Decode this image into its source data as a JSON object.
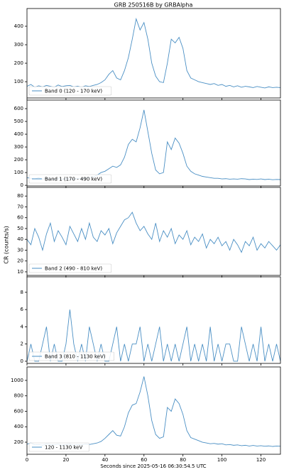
{
  "title": "GRB 250516B by GRBAlpha",
  "x_label": "Seconds since 2025-05-16 06:30:54.5 UTC",
  "y_label": "CR (counts/s)",
  "chart_data": [
    {
      "type": "line",
      "legend": "lower left",
      "xlim": [
        0,
        130
      ],
      "xticks": [
        0,
        20,
        40,
        60,
        80,
        100,
        120
      ],
      "ylim": [
        12,
        496
      ],
      "yticks": [
        100,
        200,
        300,
        400
      ],
      "x": [
        0,
        2,
        4,
        6,
        8,
        10,
        12,
        14,
        16,
        18,
        20,
        22,
        24,
        26,
        28,
        30,
        32,
        34,
        36,
        38,
        40,
        42,
        44,
        46,
        48,
        50,
        52,
        54,
        56,
        58,
        60,
        62,
        64,
        66,
        68,
        70,
        72,
        74,
        76,
        78,
        80,
        82,
        84,
        86,
        88,
        90,
        92,
        94,
        96,
        98,
        100,
        102,
        104,
        106,
        108,
        110,
        112,
        114,
        116,
        118,
        120,
        122,
        124,
        126,
        128,
        130
      ],
      "series": [
        {
          "name": "Band 0 (120 - 170 keV)",
          "color": "#4a8fc4",
          "values": [
            75,
            85,
            70,
            78,
            72,
            80,
            75,
            70,
            82,
            74,
            78,
            80,
            72,
            76,
            70,
            78,
            74,
            80,
            85,
            95,
            110,
            140,
            160,
            120,
            110,
            160,
            230,
            330,
            440,
            380,
            420,
            330,
            200,
            130,
            100,
            95,
            200,
            330,
            310,
            340,
            280,
            160,
            120,
            110,
            100,
            95,
            90,
            85,
            90,
            80,
            85,
            75,
            80,
            72,
            78,
            70,
            75,
            72,
            68,
            74,
            70,
            66,
            72,
            68,
            70,
            68
          ]
        }
      ]
    },
    {
      "type": "line",
      "legend": "lower left",
      "xlim": [
        0,
        130
      ],
      "xticks": [
        0,
        20,
        40,
        60,
        80,
        100,
        120
      ],
      "ylim": [
        -5,
        667
      ],
      "yticks": [
        0,
        100,
        200,
        300,
        400,
        500,
        600
      ],
      "x": [
        0,
        2,
        4,
        6,
        8,
        10,
        12,
        14,
        16,
        18,
        20,
        22,
        24,
        26,
        28,
        30,
        32,
        34,
        36,
        38,
        40,
        42,
        44,
        46,
        48,
        50,
        52,
        54,
        56,
        58,
        60,
        62,
        64,
        66,
        68,
        70,
        72,
        74,
        76,
        78,
        80,
        82,
        84,
        86,
        88,
        90,
        92,
        94,
        96,
        98,
        100,
        102,
        104,
        106,
        108,
        110,
        112,
        114,
        116,
        118,
        120,
        122,
        124,
        126,
        128,
        130
      ],
      "series": [
        {
          "name": "Band 1 (170 - 490 keV)",
          "color": "#4a8fc4",
          "values": [
            60,
            55,
            50,
            60,
            48,
            55,
            50,
            45,
            55,
            48,
            52,
            50,
            48,
            55,
            50,
            58,
            60,
            65,
            80,
            100,
            110,
            130,
            150,
            140,
            160,
            220,
            320,
            360,
            340,
            450,
            590,
            420,
            250,
            120,
            90,
            100,
            340,
            280,
            370,
            330,
            250,
            150,
            110,
            90,
            80,
            70,
            65,
            60,
            55,
            55,
            50,
            52,
            48,
            50,
            48,
            52,
            50,
            45,
            48,
            46,
            50,
            45,
            48,
            44,
            46,
            45
          ]
        }
      ]
    },
    {
      "type": "line",
      "legend": "lower left",
      "xlim": [
        0,
        130
      ],
      "xticks": [
        0,
        20,
        40,
        60,
        80,
        100,
        120
      ],
      "ylim": [
        6.7,
        88
      ],
      "yticks": [
        10,
        20,
        30,
        40,
        50,
        60,
        70,
        80
      ],
      "x": [
        0,
        2,
        4,
        6,
        8,
        10,
        12,
        14,
        16,
        18,
        20,
        22,
        24,
        26,
        28,
        30,
        32,
        34,
        36,
        38,
        40,
        42,
        44,
        46,
        48,
        50,
        52,
        54,
        56,
        58,
        60,
        62,
        64,
        66,
        68,
        70,
        72,
        74,
        76,
        78,
        80,
        82,
        84,
        86,
        88,
        90,
        92,
        94,
        96,
        98,
        100,
        102,
        104,
        106,
        108,
        110,
        112,
        114,
        116,
        118,
        120,
        122,
        124,
        126,
        128,
        130
      ],
      "series": [
        {
          "name": "Band 2 (490 - 810 keV)",
          "color": "#4a8fc4",
          "values": [
            40,
            35,
            50,
            42,
            30,
            45,
            55,
            38,
            48,
            42,
            35,
            52,
            45,
            38,
            50,
            40,
            55,
            42,
            38,
            48,
            44,
            50,
            36,
            46,
            52,
            58,
            60,
            65,
            55,
            48,
            52,
            45,
            40,
            55,
            38,
            48,
            42,
            50,
            36,
            44,
            40,
            48,
            35,
            42,
            38,
            45,
            32,
            40,
            36,
            42,
            34,
            38,
            30,
            40,
            35,
            28,
            38,
            34,
            42,
            30,
            36,
            32,
            38,
            34,
            30,
            35
          ]
        }
      ]
    },
    {
      "type": "line",
      "legend": "lower left",
      "xlim": [
        0,
        130
      ],
      "xticks": [
        0,
        20,
        40,
        60,
        80,
        100,
        120
      ],
      "ylim": [
        -0.25,
        9.8
      ],
      "yticks": [
        0,
        2,
        4,
        6,
        8
      ],
      "x": [
        0,
        2,
        4,
        6,
        8,
        10,
        12,
        14,
        16,
        18,
        20,
        22,
        24,
        26,
        28,
        30,
        32,
        34,
        36,
        38,
        40,
        42,
        44,
        46,
        48,
        50,
        52,
        54,
        56,
        58,
        60,
        62,
        64,
        66,
        68,
        70,
        72,
        74,
        76,
        78,
        80,
        82,
        84,
        86,
        88,
        90,
        92,
        94,
        96,
        98,
        100,
        102,
        104,
        106,
        108,
        110,
        112,
        114,
        116,
        118,
        120,
        122,
        124,
        126,
        128,
        130
      ],
      "series": [
        {
          "name": "Band 3 (810 - 1130 keV)",
          "color": "#4a8fc4",
          "values": [
            0,
            2,
            0,
            0,
            2,
            4,
            0,
            2,
            0,
            0,
            2,
            6,
            2,
            0,
            2,
            0,
            4,
            2,
            0,
            2,
            0,
            0,
            2,
            4,
            0,
            2,
            0,
            2,
            2,
            4,
            0,
            2,
            0,
            2,
            4,
            0,
            2,
            0,
            2,
            0,
            2,
            4,
            0,
            2,
            0,
            2,
            0,
            4,
            0,
            2,
            0,
            2,
            2,
            0,
            0,
            4,
            2,
            0,
            2,
            0,
            4,
            0,
            2,
            0,
            2,
            0
          ]
        }
      ]
    },
    {
      "type": "line",
      "legend": "lower left",
      "xlim": [
        0,
        130
      ],
      "xticks": [
        0,
        20,
        40,
        60,
        80,
        100,
        120
      ],
      "ylim": [
        44,
        1174
      ],
      "yticks": [
        200,
        400,
        600,
        800,
        1000
      ],
      "x": [
        0,
        2,
        4,
        6,
        8,
        10,
        12,
        14,
        16,
        18,
        20,
        22,
        24,
        26,
        28,
        30,
        32,
        34,
        36,
        38,
        40,
        42,
        44,
        46,
        48,
        50,
        52,
        54,
        56,
        58,
        60,
        62,
        64,
        66,
        68,
        70,
        72,
        74,
        76,
        78,
        80,
        82,
        84,
        86,
        88,
        90,
        92,
        94,
        96,
        98,
        100,
        102,
        104,
        106,
        108,
        110,
        112,
        114,
        116,
        118,
        120,
        122,
        124,
        126,
        128,
        130
      ],
      "series": [
        {
          "name": "120 - 1130 keV",
          "color": "#4a8fc4",
          "values": [
            175,
            190,
            165,
            170,
            160,
            180,
            170,
            165,
            175,
            160,
            170,
            175,
            160,
            170,
            165,
            175,
            170,
            180,
            190,
            210,
            250,
            300,
            350,
            290,
            280,
            400,
            580,
            680,
            700,
            850,
            1050,
            800,
            480,
            300,
            250,
            270,
            650,
            600,
            760,
            700,
            560,
            350,
            260,
            240,
            220,
            200,
            190,
            180,
            185,
            175,
            180,
            165,
            170,
            160,
            165,
            155,
            160,
            150,
            158,
            150,
            155,
            148,
            152,
            145,
            150,
            148
          ]
        }
      ]
    }
  ]
}
